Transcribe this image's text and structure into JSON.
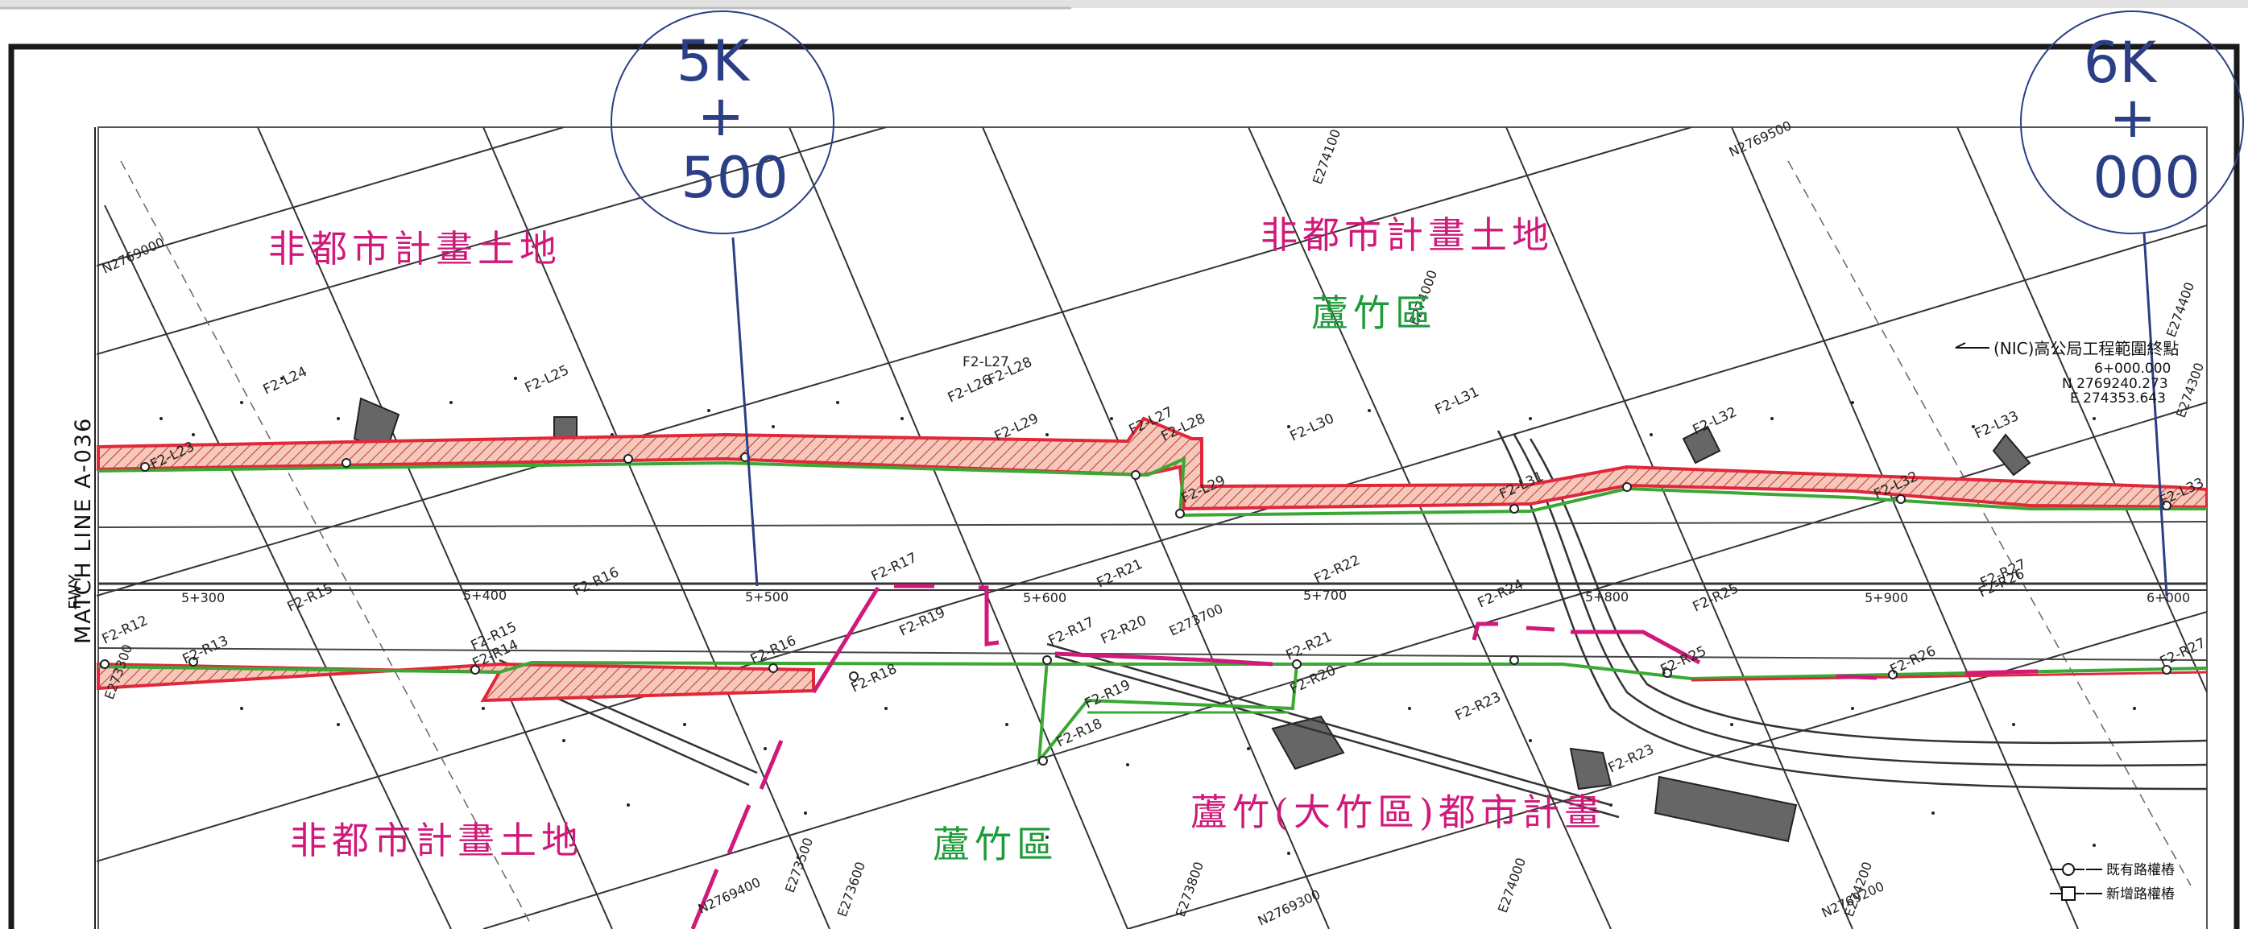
{
  "zones": {
    "nonurban_upper_left": "非都市計畫土地",
    "nonurban_upper_right": "非都市計畫土地",
    "nonurban_lower_left": "非都市計畫土地",
    "luzhu_upper": "蘆竹區",
    "luzhu_lower": "蘆竹區",
    "urban_plan": "蘆竹(大竹區)都市計畫"
  },
  "station_marks": {
    "left": {
      "top": "5K",
      "middle": "+",
      "bottom": "500"
    },
    "right": {
      "top": "6K",
      "middle": "+",
      "bottom": "000"
    }
  },
  "match_line": "MATCH LINE A-036",
  "fwy_label": "FWY",
  "chainage_ticks": [
    "5+300",
    "5+400",
    "5+500",
    "5+600",
    "5+700",
    "5+800",
    "5+900",
    "6+000"
  ],
  "north_lots": [
    "F2-L23",
    "F2-L24",
    "F2-L25",
    "F2-L26",
    "F2-L27",
    "F2-L28",
    "F2-L29",
    "F2-L27",
    "F2-L28",
    "F2-L29",
    "F2-L30",
    "F2-L31",
    "F2-L31",
    "F2-L32",
    "F2-L32",
    "F2-L33",
    "F2-L33"
  ],
  "south_lots": [
    "F2-R12",
    "F2-R13",
    "F2-R14",
    "F2-R15",
    "F2-R15",
    "F2-R16",
    "F2-R16",
    "F2-R17",
    "F2-R18",
    "F2-R19",
    "F2-R17",
    "F2-R18",
    "F2-R19",
    "F2-R20",
    "F2-R20",
    "F2-R21",
    "F2-R21",
    "F2-R22",
    "F2-R23",
    "F2-R23",
    "F2-R24",
    "F2-R25",
    "F2-R25",
    "F2-R26",
    "F2-R26",
    "F2-R27",
    "F2-R27"
  ],
  "endpoint_note": {
    "title": "(NIC)高公局工程範圍終點",
    "chainage": "6+000.000",
    "n": "N 2769240.273",
    "e": "E 274353.643"
  },
  "edge_coords": [
    "N2769000",
    "E273300",
    "E273500",
    "N2769400",
    "N2769500",
    "E273600",
    "N2769300",
    "E273800",
    "E274000",
    "E274000",
    "E274100",
    "N2769200",
    "E274400",
    "E273700",
    "E274200",
    "E274300"
  ],
  "legend": [
    {
      "label": "既有路權樁"
    },
    {
      "label": "新增路權樁"
    }
  ],
  "colors": {
    "existing_boundary": "#e0283a",
    "new_boundary": "#3aa832",
    "hatch": "#f0a898",
    "magenta": "#d0197a",
    "station_blue": "#2b3f86"
  }
}
